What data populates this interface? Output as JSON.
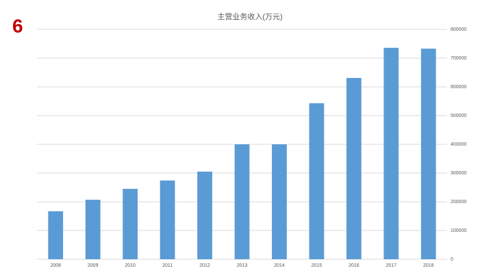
{
  "page_number": "6",
  "chart_data": {
    "type": "bar",
    "title": "主营业务收入(万元)",
    "categories": [
      "2008",
      "2009",
      "2010",
      "2011",
      "2012",
      "2013",
      "2014",
      "2015",
      "2016",
      "2017",
      "2018"
    ],
    "values": [
      167000,
      207000,
      245000,
      274000,
      305000,
      400000,
      400000,
      543000,
      631000,
      736000,
      733000
    ],
    "color": "#5b9bd5",
    "ylim": [
      0,
      800000
    ],
    "yticks": [
      0,
      100000,
      200000,
      300000,
      400000,
      500000,
      600000,
      700000,
      800000
    ],
    "grid": true
  }
}
